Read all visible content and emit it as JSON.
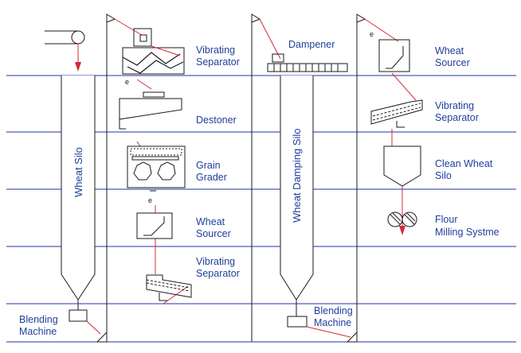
{
  "labels": {
    "vibrating_separator_1": [
      "Vibrating",
      "Separator"
    ],
    "dampener": "Dampener",
    "wheat_sourcer_right": [
      "Wheat",
      "Sourcer"
    ],
    "destoner": "Destoner",
    "vibrating_separator_right": [
      "Vibrating",
      "Separator"
    ],
    "grain_grader": [
      "Grain",
      "Grader"
    ],
    "clean_wheat_silo": [
      "Clean Wheat",
      "Silo"
    ],
    "wheat_sourcer_mid": [
      "Wheat",
      "Sourcer"
    ],
    "flour_milling": [
      "Flour",
      "Milling Systme"
    ],
    "vibrating_separator_2": [
      "Vibrating",
      "Separator"
    ],
    "blending_machine_left": [
      "Blending",
      "Machine"
    ],
    "blending_machine_mid": [
      "Blending",
      "Machine"
    ],
    "wheat_silo": "Wheat Silo",
    "wheat_damping_silo": "Wheat Damping Silo"
  },
  "colors": {
    "equipment_line": "#1a1a1a",
    "flow_line": "#d8283a",
    "floor_line": "#2233aa",
    "label_text": "#1f3f9a"
  }
}
